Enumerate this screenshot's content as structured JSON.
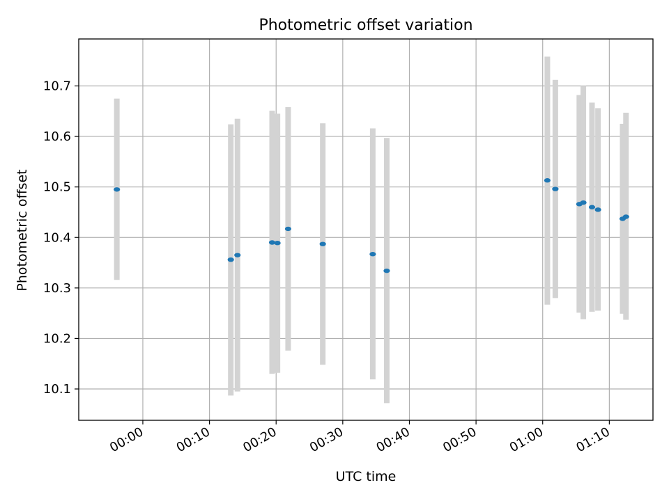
{
  "chart_data": {
    "type": "scatter",
    "title": "Photometric offset variation",
    "xlabel": "UTC time",
    "ylabel": "Photometric offset",
    "x_ticks": [
      "00:00",
      "00:10",
      "00:20",
      "00:30",
      "00:40",
      "00:50",
      "01:00",
      "01:10"
    ],
    "y_ticks": [
      10.1,
      10.2,
      10.3,
      10.4,
      10.5,
      10.6,
      10.7
    ],
    "xlim": [
      "23:50:23",
      "01:16:33"
    ],
    "ylim": [
      10.038,
      10.793
    ],
    "grid": true,
    "colors": {
      "marker": "#1f77b4",
      "errorbar": "#d3d3d3",
      "grid": "#b0b0b0",
      "axis": "#000000"
    },
    "points": [
      {
        "time": "23:56:06",
        "value": 10.495,
        "low": 10.316,
        "high": 10.675
      },
      {
        "time": "00:13:12",
        "value": 10.356,
        "low": 10.087,
        "high": 10.624
      },
      {
        "time": "00:14:12",
        "value": 10.365,
        "low": 10.095,
        "high": 10.635
      },
      {
        "time": "00:19:24",
        "value": 10.39,
        "low": 10.13,
        "high": 10.651
      },
      {
        "time": "00:20:12",
        "value": 10.389,
        "low": 10.132,
        "high": 10.645
      },
      {
        "time": "00:21:48",
        "value": 10.417,
        "low": 10.176,
        "high": 10.658
      },
      {
        "time": "00:27:00",
        "value": 10.387,
        "low": 10.148,
        "high": 10.626
      },
      {
        "time": "00:34:30",
        "value": 10.367,
        "low": 10.119,
        "high": 10.616
      },
      {
        "time": "00:36:36",
        "value": 10.334,
        "low": 10.072,
        "high": 10.597
      },
      {
        "time": "01:00:42",
        "value": 10.513,
        "low": 10.267,
        "high": 10.758
      },
      {
        "time": "01:01:54",
        "value": 10.496,
        "low": 10.28,
        "high": 10.712
      },
      {
        "time": "01:05:30",
        "value": 10.466,
        "low": 10.251,
        "high": 10.682
      },
      {
        "time": "01:06:06",
        "value": 10.469,
        "low": 10.238,
        "high": 10.7
      },
      {
        "time": "01:07:24",
        "value": 10.46,
        "low": 10.253,
        "high": 10.667
      },
      {
        "time": "01:08:18",
        "value": 10.455,
        "low": 10.255,
        "high": 10.656
      },
      {
        "time": "01:12:00",
        "value": 10.437,
        "low": 10.249,
        "high": 10.625
      },
      {
        "time": "01:12:30",
        "value": 10.441,
        "low": 10.237,
        "high": 10.647
      }
    ]
  }
}
